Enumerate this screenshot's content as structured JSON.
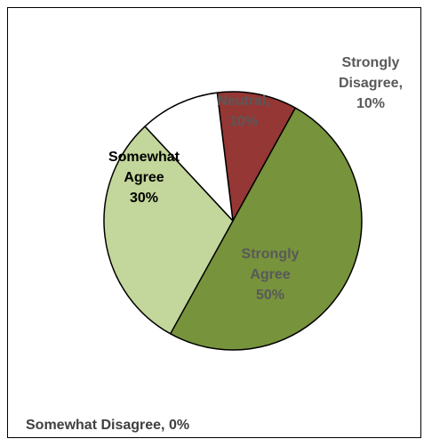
{
  "chart_data": {
    "type": "pie",
    "title": "",
    "start_angle_deg": -97,
    "slices": [
      {
        "name": "Strongly Disagree",
        "value": 10,
        "color": "#953735",
        "label_lines": [
          "Strongly",
          "Disagree,",
          "10%"
        ],
        "label_color": "#595959"
      },
      {
        "name": "Strongly Agree",
        "value": 50,
        "color": "#77933C",
        "label_lines": [
          "Strongly",
          "Agree",
          "50%"
        ],
        "label_color": "#595959"
      },
      {
        "name": "Somewhat Agree",
        "value": 30,
        "color": "#C3D69B",
        "label_lines": [
          "Somewhat",
          "Agree",
          "30%"
        ],
        "label_color": "#000000"
      },
      {
        "name": "Neutral",
        "value": 10,
        "color": "#FFFFFF",
        "label_lines": [
          "Neutral,",
          "10%"
        ],
        "label_color": "#595959"
      },
      {
        "name": "Somewhat Disagree",
        "value": 0,
        "color": "#FFFFFF",
        "label_lines": [],
        "label_color": "#404040"
      }
    ],
    "footer_label": "Somewhat Disagree, 0%"
  }
}
